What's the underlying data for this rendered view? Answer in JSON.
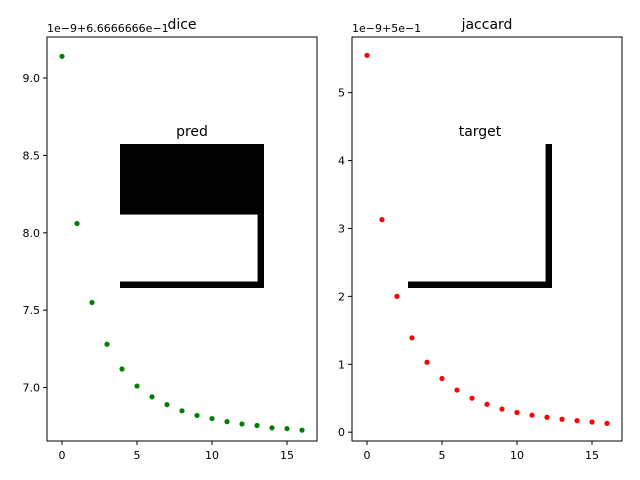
{
  "chart_data": [
    {
      "type": "scatter",
      "title": "dice",
      "offset_label": "1e−9+6.6666666e−1",
      "xlabel": "",
      "ylabel": "",
      "xlim": [
        -1,
        17
      ],
      "ylim": [
        6.655,
        9.265
      ],
      "xticks": [
        0,
        5,
        10,
        15
      ],
      "xtick_labels": [
        "0",
        "5",
        "10",
        "15"
      ],
      "yticks": [
        7.0,
        7.5,
        8.0,
        8.5,
        9.0
      ],
      "ytick_labels": [
        "7.0",
        "7.5",
        "8.0",
        "8.5",
        "9.0"
      ],
      "grid": false,
      "series": [
        {
          "color": "#008000",
          "x": [
            0,
            1,
            2,
            3,
            4,
            5,
            6,
            7,
            8,
            9,
            10,
            11,
            12,
            13,
            14,
            15,
            16
          ],
          "y": [
            9.14,
            8.06,
            7.55,
            7.28,
            7.12,
            7.01,
            6.94,
            6.89,
            6.85,
            6.82,
            6.8,
            6.78,
            6.765,
            6.755,
            6.74,
            6.735,
            6.725
          ]
        }
      ],
      "inset": {
        "title": "pred",
        "mask": [
          {
            "x0": 0.0,
            "y0": 0.0,
            "x1": 1.0,
            "y1": 0.49
          },
          {
            "x0": 0.955,
            "y0": 0.49,
            "x1": 1.0,
            "y1": 1.0
          },
          {
            "x0": 0.0,
            "y0": 0.955,
            "x1": 1.0,
            "y1": 1.0
          }
        ]
      }
    },
    {
      "type": "scatter",
      "title": "jaccard",
      "offset_label": "1e−9+5e−1",
      "xlabel": "",
      "ylabel": "",
      "xlim": [
        -1,
        17
      ],
      "ylim": [
        -0.13,
        5.82
      ],
      "xticks": [
        0,
        5,
        10,
        15
      ],
      "xtick_labels": [
        "0",
        "5",
        "10",
        "15"
      ],
      "yticks": [
        0,
        1,
        2,
        3,
        4,
        5
      ],
      "ytick_labels": [
        "0",
        "1",
        "2",
        "3",
        "4",
        "5"
      ],
      "grid": false,
      "series": [
        {
          "color": "#ff0000",
          "x": [
            0,
            1,
            2,
            3,
            4,
            5,
            6,
            7,
            8,
            9,
            10,
            11,
            12,
            13,
            14,
            15,
            16
          ],
          "y": [
            5.55,
            3.13,
            2.0,
            1.39,
            1.03,
            0.79,
            0.62,
            0.5,
            0.41,
            0.34,
            0.29,
            0.25,
            0.22,
            0.19,
            0.17,
            0.15,
            0.13
          ]
        }
      ],
      "inset": {
        "title": "target",
        "mask": [
          {
            "x0": 0.955,
            "y0": 0.0,
            "x1": 1.0,
            "y1": 1.0
          },
          {
            "x0": 0.0,
            "y0": 0.955,
            "x1": 1.0,
            "y1": 1.0
          }
        ]
      }
    }
  ]
}
